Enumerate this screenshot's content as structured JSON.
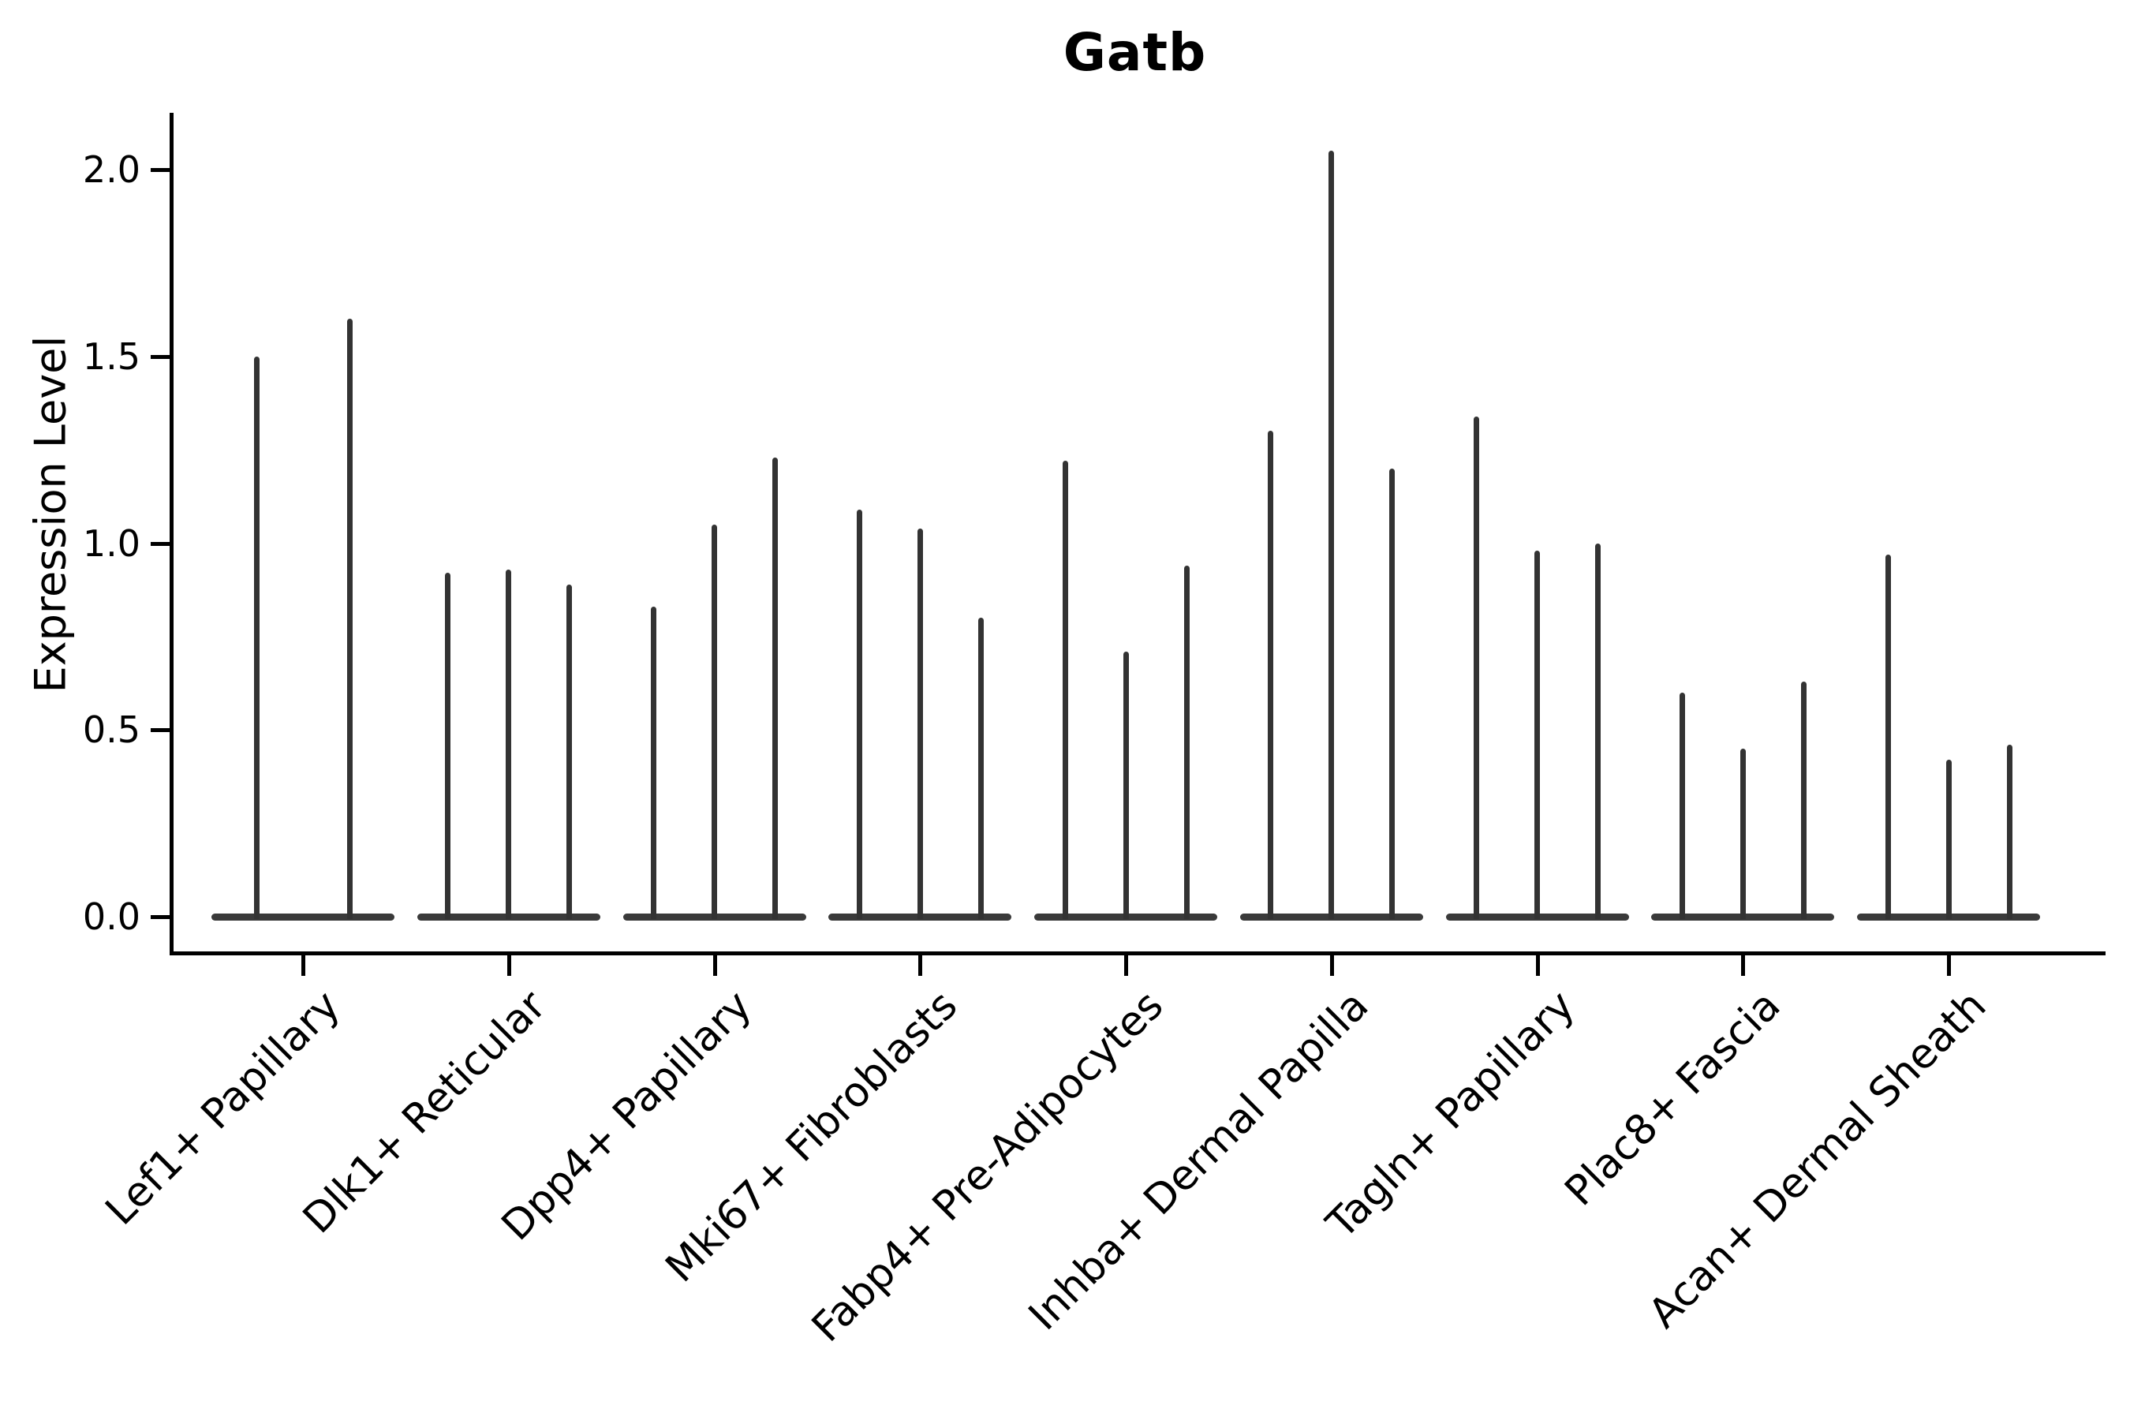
{
  "chart_data": {
    "type": "violin",
    "title": "Gatb",
    "ylabel": "Expression Level",
    "xlabel": "",
    "ylim": [
      -0.1,
      2.15
    ],
    "yticks": [
      "0.0",
      "0.5",
      "1.0",
      "1.5",
      "2.0"
    ],
    "grid": false,
    "legend": null,
    "categories": [
      "Lef1+ Papillary",
      "Dlk1+ Reticular",
      "Dpp4+ Papillary",
      "Mki67+ Fibroblasts",
      "Fabp4+ Pre-Adipocytes",
      "Inhba+ Dermal Papilla",
      "Tagln+ Papillary",
      "Plac8+ Fascia",
      "Acan+ Dermal Sheath"
    ],
    "groups": [
      {
        "category": "Lef1+ Papillary",
        "baseline_value": 0.0,
        "violin_maxima": [
          1.5,
          1.6
        ]
      },
      {
        "category": "Dlk1+ Reticular",
        "baseline_value": 0.0,
        "violin_maxima": [
          0.92,
          0.93,
          0.89
        ]
      },
      {
        "category": "Dpp4+ Papillary",
        "baseline_value": 0.0,
        "violin_maxima": [
          0.83,
          1.05,
          1.23
        ]
      },
      {
        "category": "Mki67+ Fibroblasts",
        "baseline_value": 0.0,
        "violin_maxima": [
          1.09,
          1.04,
          0.8
        ]
      },
      {
        "category": "Fabp4+ Pre-Adipocytes",
        "baseline_value": 0.0,
        "violin_maxima": [
          1.22,
          0.71,
          0.94
        ]
      },
      {
        "category": "Inhba+ Dermal Papilla",
        "baseline_value": 0.0,
        "violin_maxima": [
          1.3,
          2.05,
          1.2
        ]
      },
      {
        "category": "Tagln+ Papillary",
        "baseline_value": 0.0,
        "violin_maxima": [
          1.34,
          0.98,
          1.0
        ]
      },
      {
        "category": "Plac8+ Fascia",
        "baseline_value": 0.0,
        "violin_maxima": [
          0.6,
          0.45,
          0.63
        ]
      },
      {
        "category": "Acan+ Dermal Sheath",
        "baseline_value": 0.0,
        "violin_maxima": [
          0.97,
          0.42,
          0.46
        ]
      }
    ],
    "colors": {
      "violin": "#333333",
      "base_bar": "#3a3a3a",
      "axis": "#000000",
      "text": "#000000",
      "background": "#ffffff"
    }
  }
}
